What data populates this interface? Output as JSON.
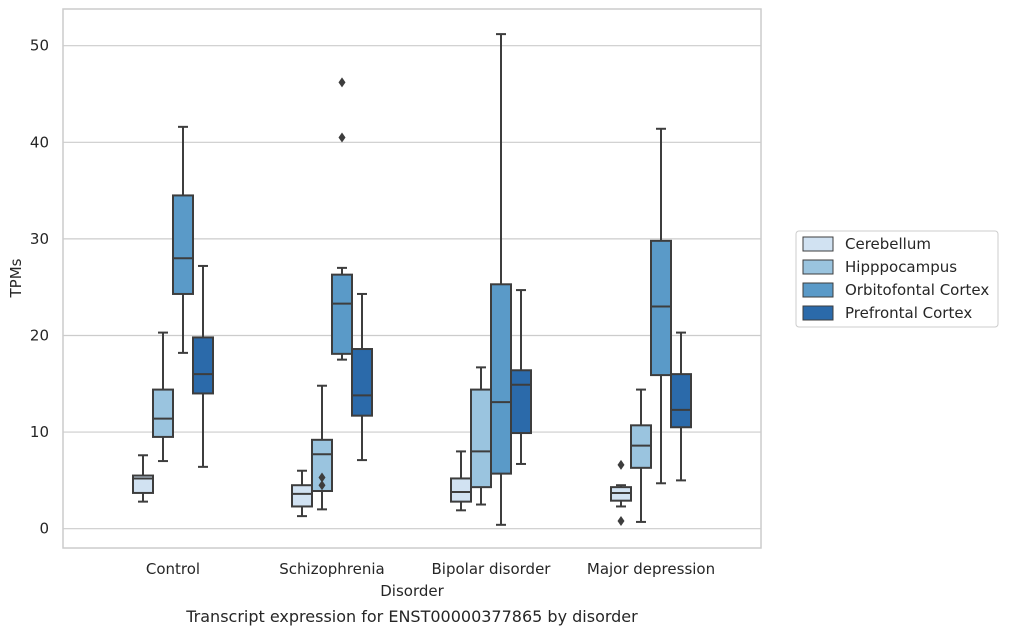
{
  "chart_data": {
    "type": "box",
    "xlabel": "Disorder",
    "ylabel": "TPMs",
    "caption": "Transcript expression for ENST00000377865 by disorder",
    "ylim": [
      -2,
      53.8
    ],
    "yticks": [
      0,
      10,
      20,
      30,
      40,
      50
    ],
    "grid": "horizontal",
    "legend_position": "right",
    "categories": [
      "Control",
      "Schizophrenia",
      "Bipolar disorder",
      "Major depression"
    ],
    "series": [
      {
        "name": "Cerebellum",
        "color": "#d1e2f2",
        "boxes": [
          {
            "whisker_low": 2.8,
            "q1": 3.7,
            "median": 5.2,
            "q3": 5.5,
            "whisker_high": 7.6,
            "outliers": []
          },
          {
            "whisker_low": 1.3,
            "q1": 2.3,
            "median": 3.6,
            "q3": 4.5,
            "whisker_high": 6.0,
            "outliers": []
          },
          {
            "whisker_low": 1.9,
            "q1": 2.8,
            "median": 3.8,
            "q3": 5.2,
            "whisker_high": 8.0,
            "outliers": []
          },
          {
            "whisker_low": 2.3,
            "q1": 2.9,
            "median": 3.7,
            "q3": 4.3,
            "whisker_high": 4.5,
            "outliers": [
              6.6,
              0.8
            ]
          }
        ]
      },
      {
        "name": "Hipppocampus",
        "color": "#9ac4df",
        "boxes": [
          {
            "whisker_low": 7.0,
            "q1": 9.5,
            "median": 11.4,
            "q3": 14.4,
            "whisker_high": 20.3,
            "outliers": []
          },
          {
            "whisker_low": 2.0,
            "q1": 3.9,
            "median": 7.7,
            "q3": 9.2,
            "whisker_high": 14.8,
            "outliers": [
              5.3,
              4.5
            ]
          },
          {
            "whisker_low": 2.5,
            "q1": 4.3,
            "median": 8.0,
            "q3": 14.4,
            "whisker_high": 16.7,
            "outliers": []
          },
          {
            "whisker_low": 0.7,
            "q1": 6.3,
            "median": 8.6,
            "q3": 10.7,
            "whisker_high": 14.4,
            "outliers": []
          }
        ]
      },
      {
        "name": "Orbitofontal Cortex",
        "color": "#5a9ac8",
        "boxes": [
          {
            "whisker_low": 18.2,
            "q1": 24.3,
            "median": 28.0,
            "q3": 34.5,
            "whisker_high": 41.6,
            "outliers": []
          },
          {
            "whisker_low": 17.5,
            "q1": 18.1,
            "median": 23.3,
            "q3": 26.3,
            "whisker_high": 27.0,
            "outliers": [
              46.2,
              40.5
            ]
          },
          {
            "whisker_low": 0.4,
            "q1": 5.7,
            "median": 13.1,
            "q3": 25.3,
            "whisker_high": 51.2,
            "outliers": []
          },
          {
            "whisker_low": 4.7,
            "q1": 15.9,
            "median": 23.0,
            "q3": 29.8,
            "whisker_high": 41.4,
            "outliers": []
          }
        ]
      },
      {
        "name": "Prefrontal Cortex",
        "color": "#2b6aaa",
        "boxes": [
          {
            "whisker_low": 6.4,
            "q1": 14.0,
            "median": 16.0,
            "q3": 19.8,
            "whisker_high": 27.2,
            "outliers": []
          },
          {
            "whisker_low": 7.1,
            "q1": 11.7,
            "median": 13.8,
            "q3": 18.6,
            "whisker_high": 24.3,
            "outliers": []
          },
          {
            "whisker_low": 6.7,
            "q1": 9.9,
            "median": 14.9,
            "q3": 16.4,
            "whisker_high": 24.7,
            "outliers": []
          },
          {
            "whisker_low": 5.0,
            "q1": 10.5,
            "median": 12.3,
            "q3": 16.0,
            "whisker_high": 20.3,
            "outliers": []
          }
        ]
      }
    ]
  }
}
